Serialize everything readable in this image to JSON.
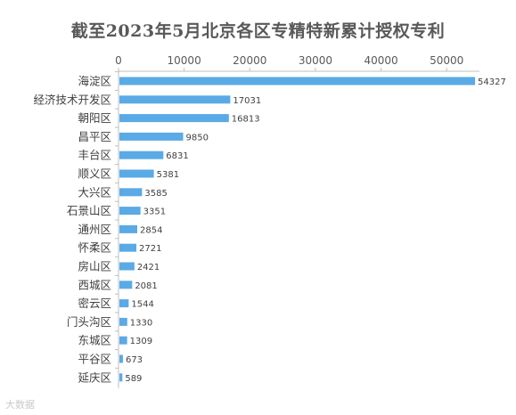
{
  "chart_data": {
    "type": "bar",
    "orientation": "horizontal",
    "title": "截至2023年5月北京各区专精特新累计授权专利",
    "xlabel": "",
    "ylabel": "",
    "xlim": [
      0,
      55000
    ],
    "ticks": [
      0,
      10000,
      20000,
      30000,
      40000,
      50000
    ],
    "tick_labels": [
      "0",
      "10000",
      "20000",
      "30000",
      "40000",
      "50000"
    ],
    "grid": false,
    "legend": "none",
    "categories": [
      "海淀区",
      "经济技术开发区",
      "朝阳区",
      "昌平区",
      "丰台区",
      "顺义区",
      "大兴区",
      "石景山区",
      "通州区",
      "怀柔区",
      "房山区",
      "西城区",
      "密云区",
      "门头沟区",
      "东城区",
      "平谷区",
      "延庆区"
    ],
    "values": [
      54327,
      17031,
      16813,
      9850,
      6831,
      5381,
      3585,
      3351,
      2854,
      2721,
      2421,
      2081,
      1544,
      1330,
      1309,
      673,
      589
    ],
    "data_labels": [
      "54327",
      "17031",
      "16813",
      "9850",
      "6831",
      "5381",
      "3585",
      "3351",
      "2854",
      "2721",
      "2421",
      "2081",
      "1544",
      "1330",
      "1309",
      "673",
      "589"
    ],
    "colors": {
      "bar": "#5aaae6",
      "axis": "#bfbfbf",
      "text": "#595959"
    }
  },
  "watermark": "大数据"
}
